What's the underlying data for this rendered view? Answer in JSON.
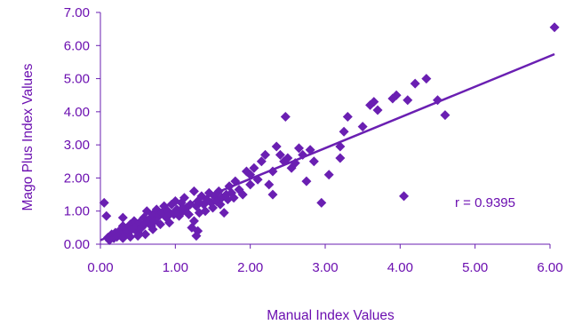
{
  "colors": {
    "text": "#6b0fb0",
    "marker": "#6a1fb2",
    "axis": "#6a1fb2"
  },
  "chart_data": {
    "type": "scatter",
    "title": "",
    "xlabel": "Manual Index Values",
    "ylabel": "Mago Plus Index Values",
    "xlim": [
      0,
      6.0
    ],
    "ylim": [
      0,
      7.0
    ],
    "xticks": [
      "0.00",
      "1.00",
      "2.00",
      "3.00",
      "4.00",
      "5.00",
      "6.00"
    ],
    "yticks": [
      "0.00",
      "1.00",
      "2.00",
      "3.00",
      "4.00",
      "5.00",
      "6.00",
      "7.00"
    ],
    "grid": false,
    "legend": "none",
    "marker": "diamond",
    "annotation": "r = 0.9395",
    "trendline": {
      "x": [
        0.0,
        6.06
      ],
      "y": [
        0.12,
        5.74
      ]
    },
    "points": [
      [
        0.05,
        1.25
      ],
      [
        0.08,
        0.85
      ],
      [
        0.1,
        0.2
      ],
      [
        0.12,
        0.12
      ],
      [
        0.15,
        0.3
      ],
      [
        0.18,
        0.18
      ],
      [
        0.2,
        0.35
      ],
      [
        0.22,
        0.22
      ],
      [
        0.25,
        0.4
      ],
      [
        0.27,
        0.3
      ],
      [
        0.3,
        0.55
      ],
      [
        0.3,
        0.8
      ],
      [
        0.32,
        0.28
      ],
      [
        0.35,
        0.48
      ],
      [
        0.38,
        0.38
      ],
      [
        0.4,
        0.6
      ],
      [
        0.42,
        0.45
      ],
      [
        0.45,
        0.7
      ],
      [
        0.48,
        0.55
      ],
      [
        0.5,
        0.35
      ],
      [
        0.52,
        0.65
      ],
      [
        0.55,
        0.5
      ],
      [
        0.58,
        0.8
      ],
      [
        0.6,
        0.62
      ],
      [
        0.62,
        1.0
      ],
      [
        0.65,
        0.75
      ],
      [
        0.68,
        0.55
      ],
      [
        0.7,
        0.9
      ],
      [
        0.72,
        0.7
      ],
      [
        0.75,
        1.05
      ],
      [
        0.78,
        0.85
      ],
      [
        0.8,
        0.6
      ],
      [
        0.82,
        0.95
      ],
      [
        0.85,
        1.15
      ],
      [
        0.88,
        0.8
      ],
      [
        0.9,
        1.0
      ],
      [
        0.92,
        0.65
      ],
      [
        0.95,
        1.2
      ],
      [
        0.98,
        0.9
      ],
      [
        1.0,
        1.3
      ],
      [
        1.02,
        1.05
      ],
      [
        1.05,
        0.85
      ],
      [
        1.08,
        1.25
      ],
      [
        1.1,
        1.0
      ],
      [
        1.12,
        1.4
      ],
      [
        1.15,
        1.1
      ],
      [
        1.18,
        0.9
      ],
      [
        1.2,
        1.2
      ],
      [
        1.22,
        0.5
      ],
      [
        1.25,
        0.7
      ],
      [
        1.25,
        1.6
      ],
      [
        1.28,
        1.15
      ],
      [
        1.3,
        1.3
      ],
      [
        1.32,
        0.95
      ],
      [
        1.35,
        1.45
      ],
      [
        1.38,
        1.2
      ],
      [
        1.4,
        1.0
      ],
      [
        1.42,
        1.35
      ],
      [
        1.45,
        1.55
      ],
      [
        1.48,
        1.25
      ],
      [
        1.5,
        1.1
      ],
      [
        1.52,
        1.45
      ],
      [
        1.55,
        1.3
      ],
      [
        1.58,
        1.6
      ],
      [
        1.6,
        1.2
      ],
      [
        1.62,
        1.4
      ],
      [
        1.65,
        0.95
      ],
      [
        1.68,
        1.5
      ],
      [
        1.7,
        1.35
      ],
      [
        1.72,
        1.75
      ],
      [
        1.75,
        1.55
      ],
      [
        1.78,
        1.4
      ],
      [
        1.8,
        1.9
      ],
      [
        1.85,
        1.65
      ],
      [
        1.9,
        1.5
      ],
      [
        1.95,
        2.2
      ],
      [
        2.0,
        1.8
      ],
      [
        2.0,
        2.1
      ],
      [
        2.05,
        2.3
      ],
      [
        2.1,
        1.95
      ],
      [
        2.15,
        2.5
      ],
      [
        2.2,
        2.7
      ],
      [
        2.25,
        1.8
      ],
      [
        2.3,
        1.5
      ],
      [
        2.3,
        2.2
      ],
      [
        2.35,
        2.95
      ],
      [
        2.4,
        2.7
      ],
      [
        2.45,
        2.5
      ],
      [
        2.5,
        2.6
      ],
      [
        2.55,
        2.3
      ],
      [
        2.6,
        2.45
      ],
      [
        2.65,
        2.9
      ],
      [
        2.7,
        2.7
      ],
      [
        2.75,
        1.9
      ],
      [
        2.8,
        2.85
      ],
      [
        2.85,
        2.5
      ],
      [
        2.95,
        1.25
      ],
      [
        3.05,
        2.1
      ],
      [
        3.2,
        2.6
      ],
      [
        3.2,
        2.95
      ],
      [
        3.25,
        3.4
      ],
      [
        3.3,
        3.85
      ],
      [
        3.5,
        3.55
      ],
      [
        3.6,
        4.2
      ],
      [
        3.65,
        4.3
      ],
      [
        3.7,
        4.05
      ],
      [
        3.9,
        4.4
      ],
      [
        3.95,
        4.5
      ],
      [
        4.05,
        1.45
      ],
      [
        4.1,
        4.35
      ],
      [
        4.2,
        4.85
      ],
      [
        4.35,
        5.0
      ],
      [
        4.5,
        4.35
      ],
      [
        4.6,
        3.9
      ],
      [
        2.47,
        3.85
      ],
      [
        1.1,
        1.1
      ],
      [
        1.0,
        0.95
      ],
      [
        0.9,
        0.85
      ],
      [
        1.3,
        0.4
      ],
      [
        1.28,
        0.25
      ],
      [
        0.7,
        0.45
      ],
      [
        0.6,
        0.3
      ],
      [
        0.5,
        0.25
      ],
      [
        0.4,
        0.22
      ],
      [
        0.3,
        0.18
      ],
      [
        6.06,
        6.55
      ]
    ]
  }
}
